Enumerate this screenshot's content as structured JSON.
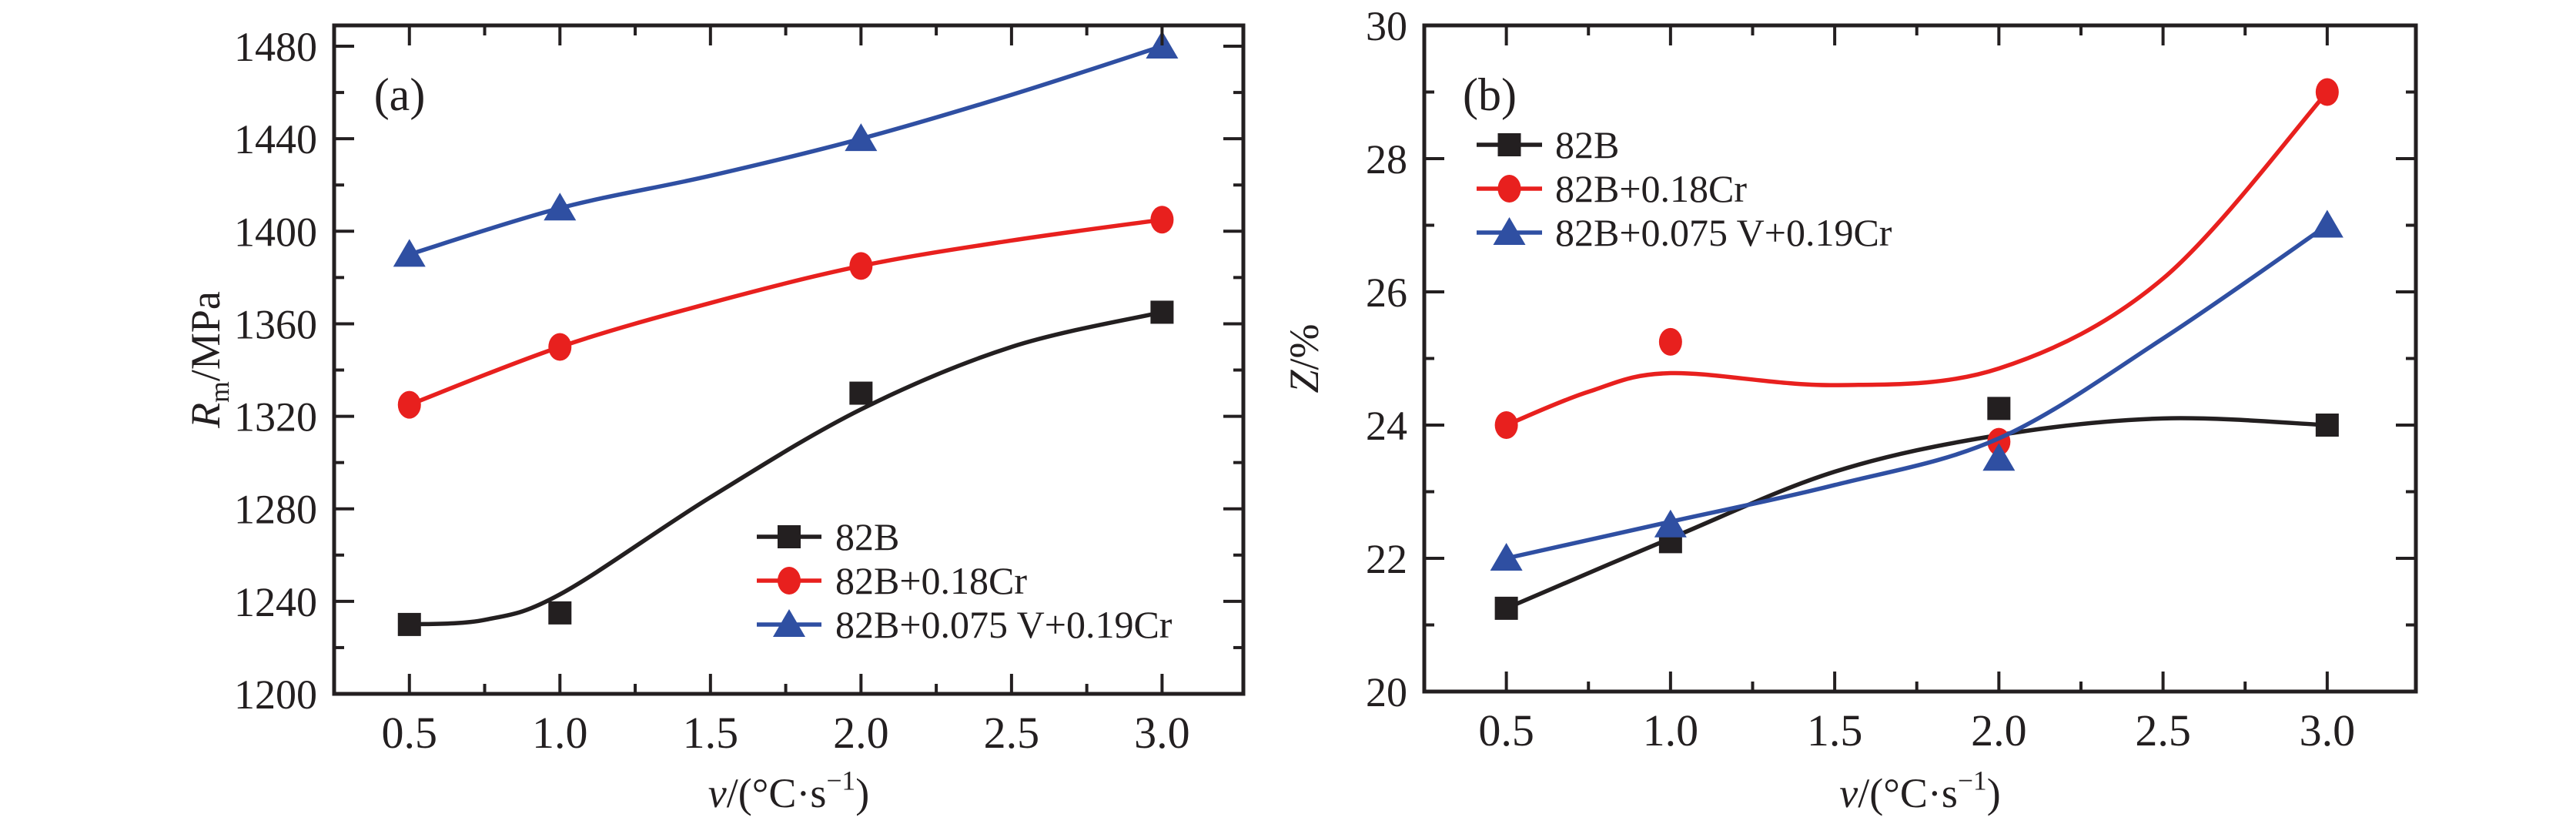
{
  "figure_background": "#ffffff",
  "axis_color": "#231f20",
  "chart_data": [
    {
      "type": "line",
      "panel_tag": "(a)",
      "xlabel": "v/(°C·s−1)",
      "xlabel_parts": [
        {
          "t": "v",
          "i": true
        },
        {
          "t": "/(°C·s"
        },
        {
          "t": "−1",
          "sup": true
        },
        {
          "t": ")"
        }
      ],
      "ylabel": "Rm/MPa",
      "ylabel_parts": [
        {
          "t": "R",
          "i": true
        },
        {
          "t": "m",
          "sub": true
        },
        {
          "t": "/MPa"
        }
      ],
      "xlim": [
        0.25,
        3.27
      ],
      "ylim": [
        1200,
        1489
      ],
      "grid": false,
      "legend_position": "inside-lower-right",
      "xticks": {
        "values": [
          0.5,
          1.0,
          1.5,
          2.0,
          2.5,
          3.0
        ],
        "labels": [
          "0.5",
          "1.0",
          "1.5",
          "2.0",
          "2.5",
          "3.0"
        ],
        "minor": [
          0.75,
          1.25,
          1.75,
          2.25,
          2.75
        ]
      },
      "yticks": {
        "values": [
          1200,
          1240,
          1280,
          1320,
          1360,
          1400,
          1440,
          1480
        ],
        "labels": [
          "1200",
          "1240",
          "1280",
          "1320",
          "1360",
          "1400",
          "1440",
          "1480"
        ],
        "minor": [
          1220,
          1260,
          1300,
          1340,
          1380,
          1420,
          1460
        ]
      },
      "series": [
        {
          "name": "82B",
          "color": "#231f20",
          "marker": "square",
          "points": [
            [
              0.5,
              1230
            ],
            [
              1.0,
              1235
            ],
            [
              2.0,
              1330
            ],
            [
              3.0,
              1365
            ]
          ],
          "curve": [
            [
              0.5,
              1230
            ],
            [
              0.75,
              1232
            ],
            [
              1.0,
              1243
            ],
            [
              1.5,
              1285
            ],
            [
              2.0,
              1323
            ],
            [
              2.5,
              1350
            ],
            [
              3.0,
              1365
            ]
          ]
        },
        {
          "name": "82B+0.18Cr",
          "color": "#e8201e",
          "marker": "circle",
          "points": [
            [
              0.5,
              1325
            ],
            [
              1.0,
              1350
            ],
            [
              2.0,
              1385
            ],
            [
              3.0,
              1405
            ]
          ],
          "curve": [
            [
              0.5,
              1325
            ],
            [
              1.0,
              1350
            ],
            [
              1.5,
              1369
            ],
            [
              2.0,
              1385
            ],
            [
              2.5,
              1396
            ],
            [
              3.0,
              1405
            ]
          ]
        },
        {
          "name": "82B+0.075 V+0.19Cr",
          "color": "#2f4fa2",
          "marker": "triangle",
          "points": [
            [
              0.5,
              1390
            ],
            [
              1.0,
              1410
            ],
            [
              2.0,
              1440
            ],
            [
              3.0,
              1480
            ]
          ],
          "curve": [
            [
              0.5,
              1390
            ],
            [
              1.0,
              1410
            ],
            [
              1.5,
              1424
            ],
            [
              2.0,
              1440
            ],
            [
              2.5,
              1459
            ],
            [
              3.0,
              1480
            ]
          ]
        }
      ]
    },
    {
      "type": "line",
      "panel_tag": "(b)",
      "xlabel": "v/(°C·s−1)",
      "xlabel_parts": [
        {
          "t": "v",
          "i": true
        },
        {
          "t": "/(°C·s"
        },
        {
          "t": "−1",
          "sup": true
        },
        {
          "t": ")"
        }
      ],
      "ylabel": "Z/%",
      "ylabel_parts": [
        {
          "t": "Z",
          "i": true
        },
        {
          "t": "/%"
        }
      ],
      "xlim": [
        0.25,
        3.27
      ],
      "ylim": [
        20,
        30
      ],
      "grid": false,
      "legend_position": "inside-upper-left",
      "xticks": {
        "values": [
          0.5,
          1.0,
          1.5,
          2.0,
          2.5,
          3.0
        ],
        "labels": [
          "0.5",
          "1.0",
          "1.5",
          "2.0",
          "2.5",
          "3.0"
        ],
        "minor": [
          0.75,
          1.25,
          1.75,
          2.25,
          2.75
        ]
      },
      "yticks": {
        "values": [
          20,
          22,
          24,
          26,
          28,
          30
        ],
        "labels": [
          "20",
          "22",
          "24",
          "26",
          "28",
          "30"
        ],
        "minor": [
          21,
          23,
          25,
          27,
          29
        ]
      },
      "series": [
        {
          "name": "82B",
          "color": "#231f20",
          "marker": "square",
          "points": [
            [
              0.5,
              21.25
            ],
            [
              1.0,
              22.25
            ],
            [
              2.0,
              24.25
            ],
            [
              3.0,
              24.0
            ]
          ],
          "curve": [
            [
              0.5,
              21.25
            ],
            [
              1.0,
              22.3
            ],
            [
              1.5,
              23.3
            ],
            [
              2.0,
              23.85
            ],
            [
              2.5,
              24.1
            ],
            [
              3.0,
              24.0
            ]
          ]
        },
        {
          "name": "82B+0.18Cr",
          "color": "#e8201e",
          "marker": "circle",
          "points": [
            [
              0.5,
              24.0
            ],
            [
              1.0,
              25.25
            ],
            [
              2.0,
              23.75
            ],
            [
              3.0,
              29.0
            ]
          ],
          "curve": [
            [
              0.5,
              24.0
            ],
            [
              0.75,
              24.5
            ],
            [
              1.0,
              24.78
            ],
            [
              1.5,
              24.6
            ],
            [
              2.0,
              24.85
            ],
            [
              2.5,
              26.2
            ],
            [
              3.0,
              29.0
            ]
          ]
        },
        {
          "name": "82B+0.075 V+0.19Cr",
          "color": "#2f4fa2",
          "marker": "triangle",
          "points": [
            [
              0.5,
              22.0
            ],
            [
              1.0,
              22.5
            ],
            [
              2.0,
              23.5
            ],
            [
              3.0,
              27.0
            ]
          ],
          "curve": [
            [
              0.5,
              22.0
            ],
            [
              1.0,
              22.55
            ],
            [
              1.5,
              23.1
            ],
            [
              2.0,
              23.8
            ],
            [
              2.5,
              25.3
            ],
            [
              3.0,
              27.0
            ]
          ]
        }
      ]
    }
  ]
}
